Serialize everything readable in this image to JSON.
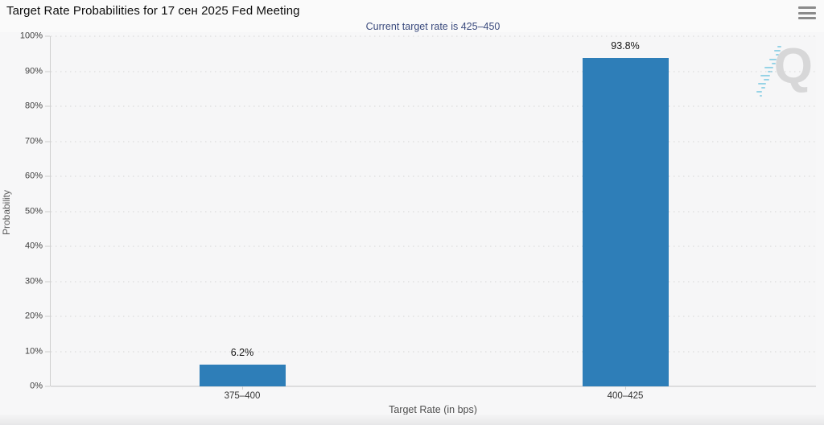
{
  "header": {
    "title": "Target Rate Probabilities for 17 сен 2025 Fed Meeting"
  },
  "subtitle": "Current target rate is 425–450",
  "watermark": {
    "letter": "Q"
  },
  "colors": {
    "bar": "#2e7eb8",
    "subtitle_text": "#3a4a7d",
    "watermark_gray": "#d7d7d8",
    "watermark_blue": "#86cde4"
  },
  "chart_data": {
    "type": "bar",
    "title": "Target Rate Probabilities for 17 сен 2025 Fed Meeting",
    "subtitle": "Current target rate is 425–450",
    "categories": [
      "375–400",
      "400–425"
    ],
    "values": [
      6.2,
      93.8
    ],
    "value_labels": [
      "6.2%",
      "93.8%"
    ],
    "xlabel": "Target Rate (in bps)",
    "ylabel": "Probability",
    "ylim": [
      0,
      100
    ],
    "ytick_step": 10,
    "ytick_suffix": "%",
    "grid": "horizontal-dotted",
    "legend": "none",
    "bar_color": "#2e7eb8"
  }
}
